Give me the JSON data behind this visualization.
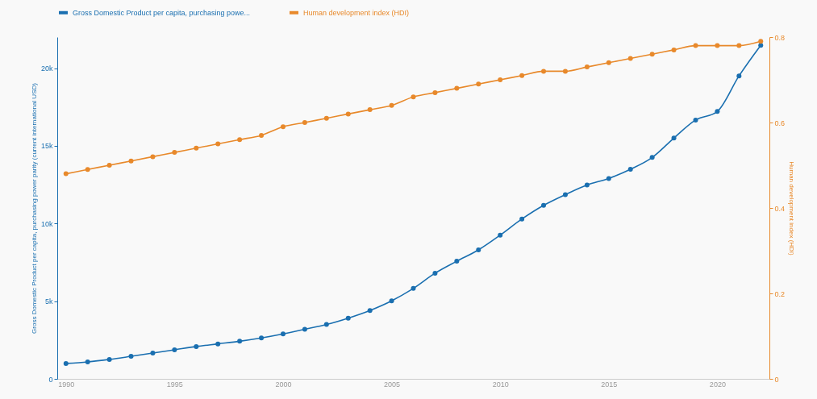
{
  "chart_data": {
    "type": "line",
    "ylabel": "Gross Domestic Product per capita, purchasing power parity (current international USD)",
    "y2label": "Human development index (HDI)",
    "x": [
      1990,
      1991,
      1992,
      1993,
      1994,
      1995,
      1996,
      1997,
      1998,
      1999,
      2000,
      2001,
      2002,
      2003,
      2004,
      2005,
      2006,
      2007,
      2008,
      2009,
      2010,
      2011,
      2012,
      2013,
      2014,
      2015,
      2016,
      2017,
      2018,
      2019,
      2020,
      2021,
      2022
    ],
    "series": [
      {
        "name": "Gross Domestic Product per capita, purchasing powe...",
        "color": "#1a6fb0",
        "values": [
          990,
          1090,
          1250,
          1450,
          1660,
          1870,
          2080,
          2250,
          2420,
          2630,
          2890,
          3190,
          3500,
          3910,
          4400,
          5020,
          5820,
          6800,
          7570,
          8300,
          9250,
          10290,
          11170,
          11860,
          12480,
          12900,
          13490,
          14250,
          15500,
          16660,
          17210,
          19500,
          21470
        ]
      },
      {
        "name": "Human development index (HDI)",
        "color": "#e8892b",
        "axis": "y2",
        "values": [
          0.48,
          0.49,
          0.5,
          0.51,
          0.52,
          0.53,
          0.54,
          0.55,
          0.56,
          0.57,
          0.59,
          0.6,
          0.61,
          0.62,
          0.63,
          0.64,
          0.66,
          0.67,
          0.68,
          0.69,
          0.7,
          0.71,
          0.72,
          0.72,
          0.73,
          0.74,
          0.75,
          0.76,
          0.77,
          0.78,
          0.78,
          0.78,
          0.79
        ]
      }
    ],
    "xlim": [
      1989.6,
      2022.4
    ],
    "xticks": [
      1990,
      1995,
      2000,
      2005,
      2010,
      2015,
      2020
    ],
    "ylim": [
      0,
      22000
    ],
    "yticks": [
      0,
      {
        "value": 5000,
        "label": "5k"
      },
      {
        "value": 10000,
        "label": "10k"
      },
      {
        "value": 15000,
        "label": "15k"
      },
      {
        "value": 20000,
        "label": "20k"
      }
    ],
    "y2lim": [
      0,
      0.8
    ],
    "y2ticks": [
      0,
      0.2,
      0.4,
      0.6,
      0.8
    ],
    "grid": false,
    "legend": "top",
    "marker": "circle",
    "line_style": "solid"
  }
}
